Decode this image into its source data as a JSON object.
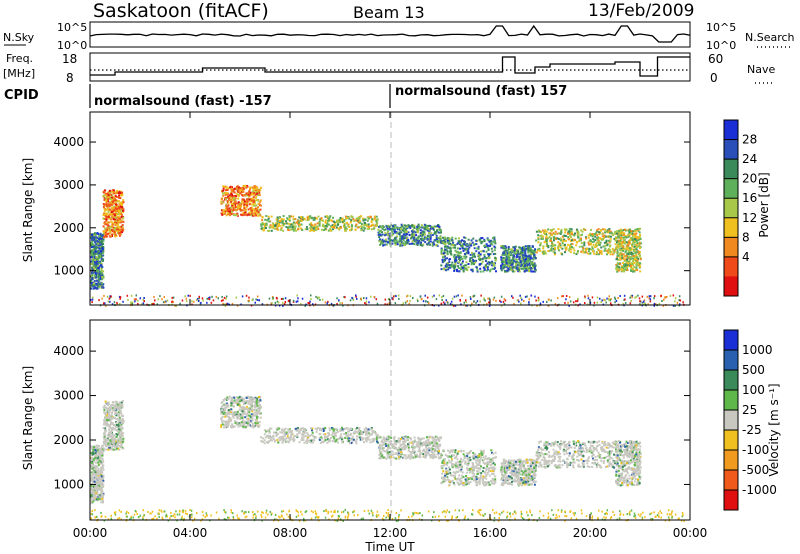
{
  "header": {
    "title": "Saskatoon (fitACF)",
    "beam": "Beam 13",
    "date": "13/Feb/2009"
  },
  "nsky_panel": {
    "left_label": "N.Sky",
    "left_ticks": [
      "10^5",
      "10^0"
    ],
    "right_ticks": [
      "10^5",
      "10^0"
    ],
    "right_label": "N.Search"
  },
  "freq_panel": {
    "left_label_1": "Freq.",
    "left_label_2": "[MHz]",
    "left_ticks": [
      "18",
      "8"
    ],
    "right_ticks": [
      "60",
      "0"
    ],
    "right_label": "Nave"
  },
  "cpid_panel": {
    "label": "CPID",
    "segments": [
      {
        "text": "normalsound (fast) -157"
      },
      {
        "text": "normalsound (fast) 157"
      }
    ]
  },
  "chart_data": [
    {
      "type": "heatmap",
      "name": "power",
      "ylabel": "Slant Range [km]",
      "xlabel": "",
      "yticks": [
        "1000",
        "2000",
        "3000",
        "4000"
      ],
      "ylim": [
        200,
        4700
      ],
      "colorbar": {
        "label": "Power [dB]",
        "ticks": [
          "4",
          "8",
          "12",
          "16",
          "20",
          "24",
          "28"
        ],
        "colors": [
          "#1a2fd6",
          "#2b4fb8",
          "#3a8a5a",
          "#5fb05a",
          "#a8c84a",
          "#f0c020",
          "#f08a20",
          "#f04a1a",
          "#e01010"
        ]
      },
      "scatter_bands_km": [
        {
          "t": [
            0.0,
            0.5
          ],
          "r": [
            600,
            1900
          ],
          "level": "high"
        },
        {
          "t": [
            0.5,
            1.3
          ],
          "r": [
            1800,
            2900
          ],
          "level": "low"
        },
        {
          "t": [
            5.2,
            6.8
          ],
          "r": [
            2300,
            3000
          ],
          "level": "low"
        },
        {
          "t": [
            6.8,
            11.5
          ],
          "r": [
            1950,
            2300
          ],
          "level": "mid"
        },
        {
          "t": [
            11.5,
            14.0
          ],
          "r": [
            1600,
            2100
          ],
          "level": "high"
        },
        {
          "t": [
            14.0,
            16.2
          ],
          "r": [
            1000,
            1800
          ],
          "level": "high"
        },
        {
          "t": [
            16.4,
            17.8
          ],
          "r": [
            1000,
            1600
          ],
          "level": "high"
        },
        {
          "t": [
            17.8,
            21.0
          ],
          "r": [
            1400,
            2000
          ],
          "level": "mid"
        },
        {
          "t": [
            21.0,
            22.0
          ],
          "r": [
            1000,
            2000
          ],
          "level": "mid"
        }
      ]
    },
    {
      "type": "heatmap",
      "name": "velocity",
      "ylabel": "Slant Range [km]",
      "xlabel": "Time UT",
      "yticks": [
        "1000",
        "2000",
        "3000",
        "4000"
      ],
      "ylim": [
        200,
        4700
      ],
      "xticks": [
        "00:00",
        "04:00",
        "08:00",
        "12:00",
        "16:00",
        "20:00",
        "00:00"
      ],
      "colorbar": {
        "label": "Velocity [m s⁻¹]",
        "ticks": [
          "1000",
          "500",
          "100",
          "25",
          "-25",
          "-100",
          "-500",
          "-1000"
        ],
        "colors": [
          "#1a2fd6",
          "#2a60b0",
          "#3a8a5a",
          "#5fb84a",
          "#c8c8c0",
          "#f0c020",
          "#f09a20",
          "#f05a1a",
          "#e01010"
        ]
      }
    }
  ]
}
